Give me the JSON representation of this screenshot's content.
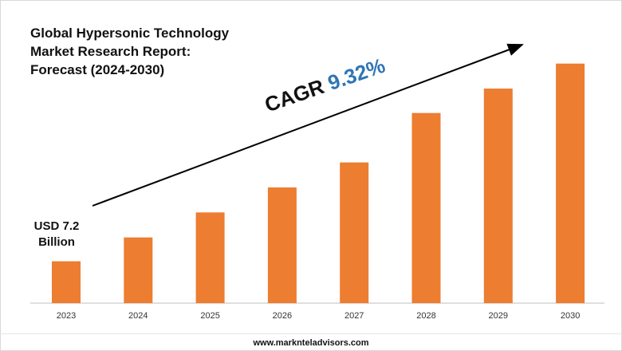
{
  "title": "Global Hypersonic Technology\nMarket Research Report:\nForecast (2024-2030)",
  "start_annotation": {
    "line1": "USD 7.2",
    "line2": "Billion"
  },
  "cagr": {
    "label": "CAGR",
    "value": "9.32%"
  },
  "footer": "www.marknteladvisors.com",
  "colors": {
    "bar": "#ed7d31",
    "accent": "#2e75b6",
    "arrow": "#000000",
    "axis": "#bfbfbf"
  },
  "chart_data": {
    "type": "bar",
    "categories": [
      "2023",
      "2024",
      "2025",
      "2026",
      "2027",
      "2028",
      "2029",
      "2030"
    ],
    "values": [
      7.2,
      11.3,
      15.6,
      19.9,
      24.2,
      32.7,
      36.9,
      41.2
    ],
    "ylim": [
      0,
      45
    ],
    "grid": false,
    "title": "Global Hypersonic Technology Market Research Report: Forecast (2024-2030)",
    "annotations": [
      "USD 7.2 Billion",
      "CAGR 9.32%"
    ]
  }
}
